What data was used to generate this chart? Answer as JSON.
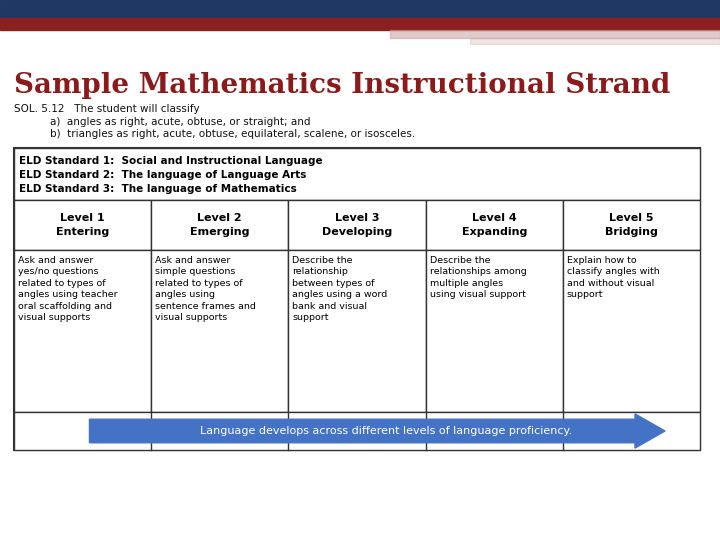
{
  "title": "Sample Mathematics Instructional Strand",
  "title_color": "#8B1A1A",
  "bg_color": "#FFFFFF",
  "header_bar_dark": "#1F3864",
  "header_bar_red": "#8B2020",
  "header_bar_pink": "#C9A0A0",
  "sol_line0": "SOL. 5.12   The student will classify",
  "sol_line1": "a)  angles as right, acute, obtuse, or straight; and",
  "sol_line2": "b)  triangles as right, acute, obtuse, equilateral, scalene, or isosceles.",
  "eld_lines": [
    "ELD Standard 1:  Social and Instructional Language",
    "ELD Standard 2:  The language of Language Arts",
    "ELD Standard 3:  The language of Mathematics"
  ],
  "level_headers": [
    "Level 1\nEntering",
    "Level 2\nEmerging",
    "Level 3\nDeveloping",
    "Level 4\nExpanding",
    "Level 5\nBridging"
  ],
  "level_content": [
    "Ask and answer\nyes/no questions\nrelated to types of\nangles using teacher\noral scaffolding and\nvisual supports",
    "Ask and answer\nsimple questions\nrelated to types of\nangles using\nsentence frames and\nvisual supports",
    "Describe the\nrelationship\nbetween types of\nangles using a word\nbank and visual\nsupport",
    "Describe the\nrelationships among\nmultiple angles\nusing visual support",
    "Explain how to\nclassify angles with\nand without visual\nsupport"
  ],
  "arrow_text": "Language develops across different levels of language proficiency.",
  "arrow_color": "#4472C4",
  "arrow_text_color": "#FFFFFF",
  "table_border_color": "#333333",
  "n_cols": 5,
  "title_fontsize": 20,
  "sol_fontsize": 7.5,
  "eld_fontsize": 7.5,
  "level_fontsize": 8.0,
  "content_fontsize": 6.8,
  "arrow_fontsize": 8.0
}
